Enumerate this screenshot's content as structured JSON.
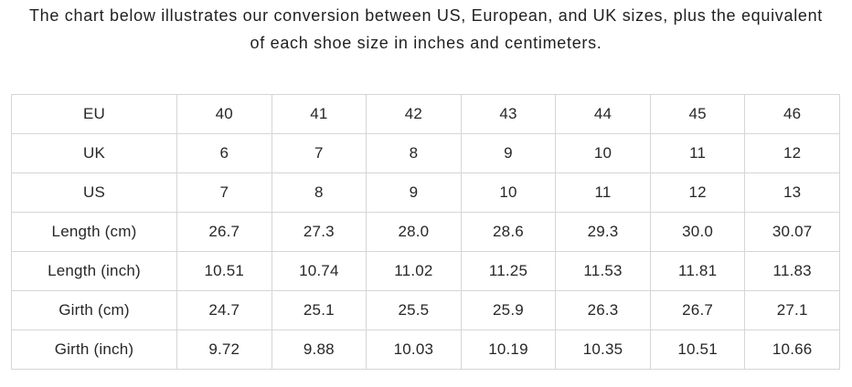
{
  "heading": {
    "line1": "The chart below illustrates our conversion between US, European, and UK sizes, plus the equivalent",
    "line2": "of each shoe size in inches and centimeters."
  },
  "chart_data": {
    "type": "table",
    "rows": [
      {
        "label": "EU",
        "values": [
          "40",
          "41",
          "42",
          "43",
          "44",
          "45",
          "46"
        ]
      },
      {
        "label": "UK",
        "values": [
          "6",
          "7",
          "8",
          "9",
          "10",
          "11",
          "12"
        ]
      },
      {
        "label": "US",
        "values": [
          "7",
          "8",
          "9",
          "10",
          "11",
          "12",
          "13"
        ]
      },
      {
        "label": "Length (cm)",
        "values": [
          "26.7",
          "27.3",
          "28.0",
          "28.6",
          "29.3",
          "30.0",
          "30.07"
        ]
      },
      {
        "label": "Length (inch)",
        "values": [
          "10.51",
          "10.74",
          "11.02",
          "11.25",
          "11.53",
          "11.81",
          "11.83"
        ]
      },
      {
        "label": "Girth (cm)",
        "values": [
          "24.7",
          "25.1",
          "25.5",
          "25.9",
          "26.3",
          "26.7",
          "27.1"
        ]
      },
      {
        "label": "Girth (inch)",
        "values": [
          "9.72",
          "9.88",
          "10.03",
          "10.19",
          "10.35",
          "10.51",
          "10.66"
        ]
      }
    ]
  },
  "colors": {
    "background": "#ffffff",
    "text": "#272727",
    "border": "#d6d6d6"
  }
}
